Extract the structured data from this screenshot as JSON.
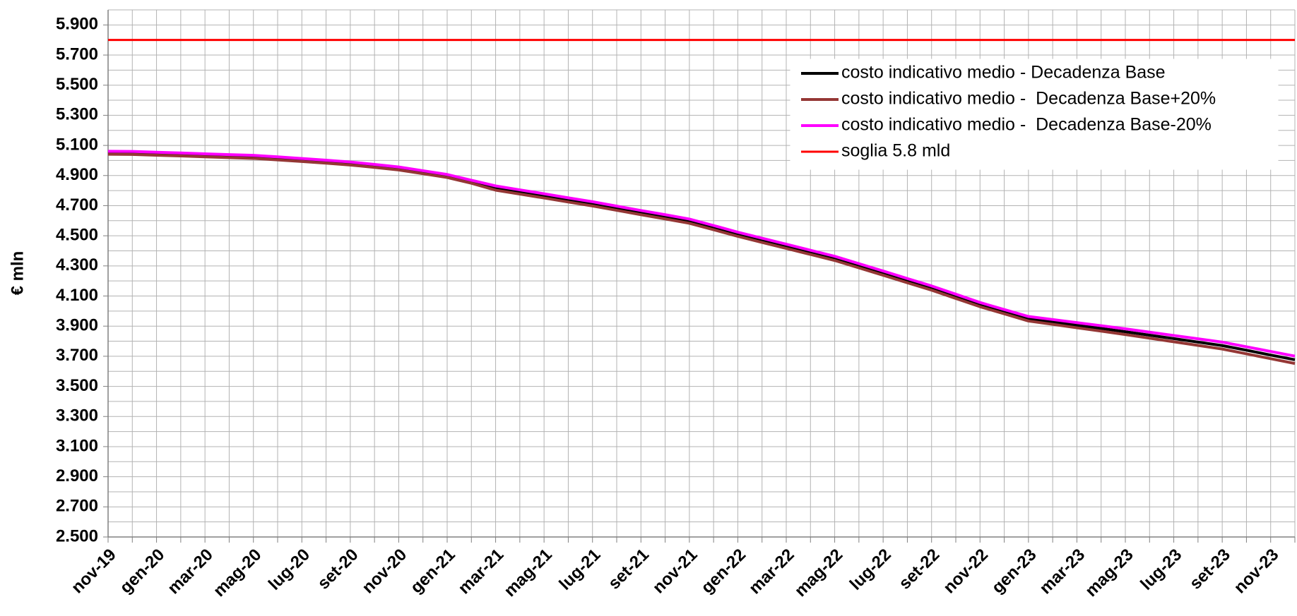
{
  "chart_data": {
    "type": "line",
    "y_label": "€ mln",
    "categories": [
      "nov-19",
      null,
      "gen-20",
      null,
      "mar-20",
      null,
      "mag-20",
      null,
      "lug-20",
      null,
      "set-20",
      null,
      "nov-20",
      null,
      "gen-21",
      null,
      "mar-21",
      null,
      "mag-21",
      null,
      "lug-21",
      null,
      "set-21",
      null,
      "nov-21",
      null,
      "gen-22",
      null,
      "mar-22",
      null,
      "mag-22",
      null,
      "lug-22",
      null,
      "set-22",
      null,
      "nov-22",
      null,
      "gen-23",
      null,
      "mar-23",
      null,
      "mag-23",
      null,
      "lug-23",
      null,
      "set-23",
      null,
      "nov-23",
      null
    ],
    "series": [
      {
        "name": "costo indicativo medio - Decadenza Base",
        "color": "#000000",
        "values": [
          5051,
          5050,
          5045,
          5040,
          5034,
          5029,
          5024,
          5014,
          5003,
          4992,
          4980,
          4964,
          4947,
          4922,
          4897,
          4859,
          4817,
          4791,
          4765,
          4738,
          4712,
          4683,
          4654,
          4626,
          4597,
          4554,
          4510,
          4470,
          4430,
          4390,
          4350,
          4301,
          4252,
          4202,
          4153,
          4098,
          4043,
          3996,
          3949,
          3928,
          3906,
          3885,
          3863,
          3840,
          3817,
          3794,
          3771,
          3740,
          3708,
          3677
        ]
      },
      {
        "name": "costo indicativo medio -  Decadenza Base+20%",
        "color": "#953735",
        "values": [
          5041,
          5040,
          5035,
          5030,
          5024,
          5019,
          5014,
          5004,
          4993,
          4982,
          4970,
          4954,
          4937,
          4912,
          4887,
          4849,
          4803,
          4777,
          4751,
          4724,
          4698,
          4669,
          4640,
          4612,
          4583,
          4540,
          4496,
          4456,
          4416,
          4376,
          4336,
          4287,
          4238,
          4188,
          4139,
          4084,
          4029,
          3982,
          3934,
          3912,
          3889,
          3867,
          3844,
          3820,
          3796,
          3772,
          3748,
          3716,
          3684,
          3652
        ]
      },
      {
        "name": "costo indicativo medio -  Decadenza Base-20%",
        "color": "#ff00ff",
        "values": [
          5061,
          5060,
          5055,
          5050,
          5044,
          5039,
          5034,
          5024,
          5013,
          5002,
          4990,
          4974,
          4957,
          4932,
          4907,
          4869,
          4831,
          4805,
          4779,
          4752,
          4726,
          4697,
          4668,
          4640,
          4611,
          4568,
          4524,
          4484,
          4444,
          4404,
          4364,
          4315,
          4266,
          4216,
          4167,
          4112,
          4057,
          4010,
          3964,
          3944,
          3923,
          3903,
          3882,
          3860,
          3838,
          3816,
          3794,
          3763,
          3732,
          3701
        ]
      },
      {
        "name": "soglia 5.8 mld",
        "color": "#ff0000",
        "values": [
          5800,
          5800,
          5800,
          5800,
          5800,
          5800,
          5800,
          5800,
          5800,
          5800,
          5800,
          5800,
          5800,
          5800,
          5800,
          5800,
          5800,
          5800,
          5800,
          5800,
          5800,
          5800,
          5800,
          5800,
          5800,
          5800,
          5800,
          5800,
          5800,
          5800,
          5800,
          5800,
          5800,
          5800,
          5800,
          5800,
          5800,
          5800,
          5800,
          5800,
          5800,
          5800,
          5800,
          5800,
          5800,
          5800,
          5800,
          5800,
          5800,
          5800
        ]
      }
    ],
    "ylim": [
      2500,
      6000
    ],
    "yticks": [
      {
        "value": 2500,
        "label": "2.500"
      },
      {
        "value": 2700,
        "label": "2.700"
      },
      {
        "value": 2900,
        "label": "2.900"
      },
      {
        "value": 3100,
        "label": "3.100"
      },
      {
        "value": 3300,
        "label": "3.300"
      },
      {
        "value": 3500,
        "label": "3.500"
      },
      {
        "value": 3700,
        "label": "3.700"
      },
      {
        "value": 3900,
        "label": "3.900"
      },
      {
        "value": 4100,
        "label": "4.100"
      },
      {
        "value": 4300,
        "label": "4.300"
      },
      {
        "value": 4500,
        "label": "4.500"
      },
      {
        "value": 4700,
        "label": "4.700"
      },
      {
        "value": 4900,
        "label": "4.900"
      },
      {
        "value": 5100,
        "label": "5.100"
      },
      {
        "value": 5300,
        "label": "5.300"
      },
      {
        "value": 5500,
        "label": "5.500"
      },
      {
        "value": 5700,
        "label": "5.700"
      },
      {
        "value": 5900,
        "label": "5.900"
      }
    ],
    "yminorticks": [
      2600,
      2800,
      3000,
      3200,
      3400,
      3600,
      3800,
      4000,
      4200,
      4400,
      4600,
      4800,
      5000,
      5200,
      5400,
      5600,
      5800,
      6000
    ],
    "grid": true,
    "legend": "upper right"
  }
}
